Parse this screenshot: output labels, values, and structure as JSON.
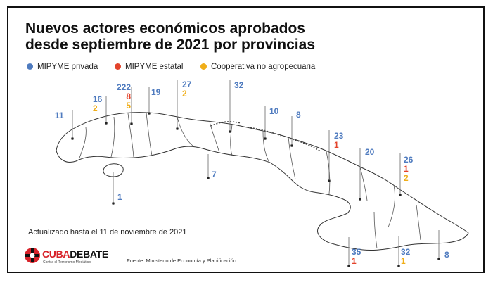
{
  "title_line1": "Nuevos actores económicos aprobados",
  "title_line2": "desde septiembre de 2021 por provincias",
  "legend": [
    {
      "label": "MIPYME privada",
      "color": "#4f7bbf"
    },
    {
      "label": "MIPYME estatal",
      "color": "#e3432b"
    },
    {
      "label": "Cooperativa no agropecuaria",
      "color": "#f0ae19"
    }
  ],
  "updated": "Actualizado hasta el 11 de noviembre de 2021",
  "source": "Fuente: Ministerio de Economía y Planificación",
  "logo": {
    "part1": "CUBA",
    "part2": "DEBATE",
    "tagline": "Contra el Terrorismo Mediático"
  },
  "provinces": [
    {
      "priv": "11"
    },
    {
      "priv": "16",
      "coop": "2"
    },
    {
      "priv": "222",
      "est": "8",
      "coop": "5"
    },
    {
      "priv": "19"
    },
    {
      "priv": "27",
      "coop": "2"
    },
    {
      "priv": "32"
    },
    {
      "priv": "10"
    },
    {
      "priv": "8"
    },
    {
      "priv": "23",
      "est": "1"
    },
    {
      "priv": "20"
    },
    {
      "priv": "26",
      "est": "1",
      "coop": "2"
    },
    {
      "priv": "1"
    },
    {
      "priv": "7"
    },
    {
      "priv": "35",
      "est": "1"
    },
    {
      "priv": "32",
      "coop": "1"
    },
    {
      "priv": "8"
    }
  ]
}
